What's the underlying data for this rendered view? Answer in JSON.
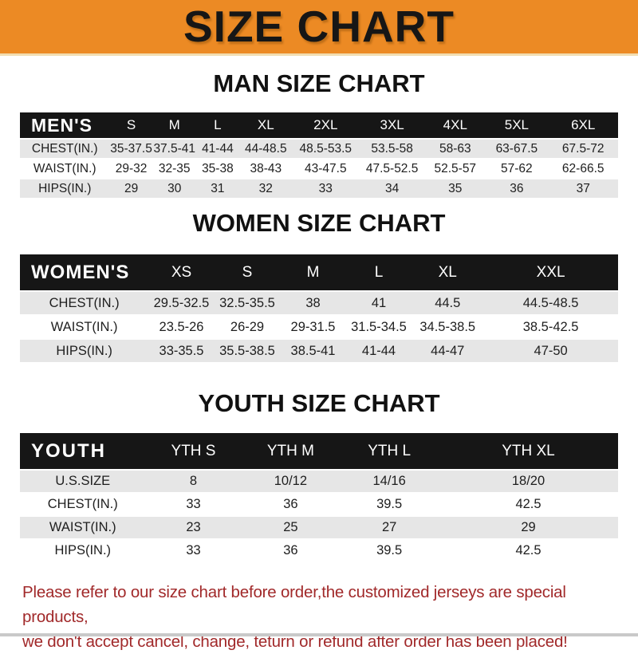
{
  "banner": {
    "title": "SIZE CHART",
    "bg_color": "#ec8a24",
    "text_color": "#161616"
  },
  "sections": [
    {
      "heading": "MAN SIZE CHART",
      "header_label": "MEN'S",
      "columns": [
        "S",
        "M",
        "L",
        "XL",
        "2XL",
        "3XL",
        "4XL",
        "5XL",
        "6XL"
      ],
      "rows": [
        {
          "label": "CHEST(IN.)",
          "values": [
            "35-37.5",
            "37.5-41",
            "41-44",
            "44-48.5",
            "48.5-53.5",
            "53.5-58",
            "58-63",
            "63-67.5",
            "67.5-72"
          ]
        },
        {
          "label": "WAIST(IN.)",
          "values": [
            "29-32",
            "32-35",
            "35-38",
            "38-43",
            "43-47.5",
            "47.5-52.5",
            "52.5-57",
            "57-62",
            "62-66.5"
          ]
        },
        {
          "label": "HIPS(IN.)",
          "values": [
            "29",
            "30",
            "31",
            "32",
            "33",
            "34",
            "35",
            "36",
            "37"
          ]
        }
      ]
    },
    {
      "heading": "WOMEN SIZE CHART",
      "header_label": "WOMEN'S",
      "columns": [
        "XS",
        "S",
        "M",
        "L",
        "XL",
        "XXL"
      ],
      "rows": [
        {
          "label": "CHEST(IN.)",
          "values": [
            "29.5-32.5",
            "32.5-35.5",
            "38",
            "41",
            "44.5",
            "44.5-48.5"
          ]
        },
        {
          "label": "WAIST(IN.)",
          "values": [
            "23.5-26",
            "26-29",
            "29-31.5",
            "31.5-34.5",
            "34.5-38.5",
            "38.5-42.5"
          ]
        },
        {
          "label": "HIPS(IN.)",
          "values": [
            "33-35.5",
            "35.5-38.5",
            "38.5-41",
            "41-44",
            "44-47",
            "47-50"
          ]
        }
      ]
    },
    {
      "heading": "YOUTH SIZE CHART",
      "header_label": "YOUTH",
      "columns": [
        "YTH S",
        "YTH M",
        "YTH L",
        "YTH XL"
      ],
      "rows": [
        {
          "label": "U.S.SIZE",
          "values": [
            "8",
            "10/12",
            "14/16",
            "18/20"
          ]
        },
        {
          "label": "CHEST(IN.)",
          "values": [
            "33",
            "36",
            "39.5",
            "42.5"
          ]
        },
        {
          "label": "WAIST(IN.)",
          "values": [
            "23",
            "25",
            "27",
            "29"
          ]
        },
        {
          "label": "HIPS(IN.)",
          "values": [
            "33",
            "36",
            "39.5",
            "42.5"
          ]
        }
      ]
    }
  ],
  "footer": {
    "line1": "Please refer to our size chart before order,the customized jerseys are special products,",
    "line2": "we don't accept cancel, change, teturn or refund after order has been placed!",
    "text_color": "#a1292a"
  }
}
